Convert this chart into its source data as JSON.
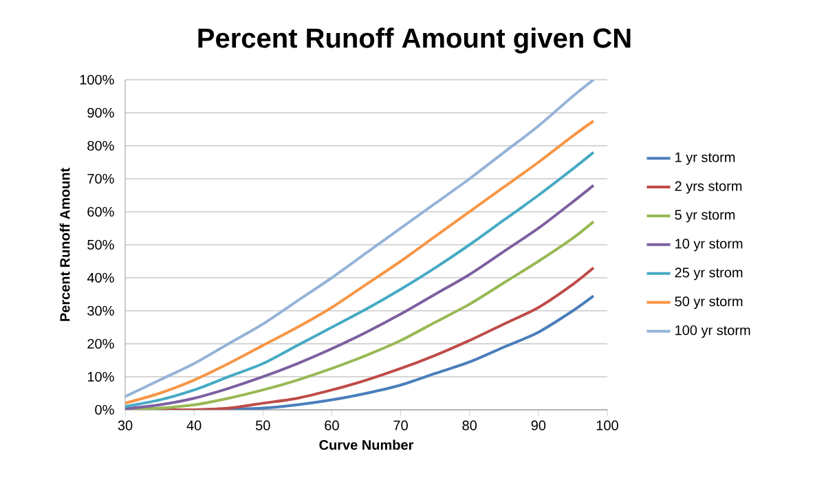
{
  "chart_data": {
    "type": "line",
    "title": "Percent Runoff Amount given CN",
    "xlabel": "Curve Number",
    "ylabel": "Percent Runoff Amount",
    "x": [
      30,
      35,
      40,
      45,
      50,
      55,
      60,
      65,
      70,
      75,
      80,
      85,
      90,
      95,
      98
    ],
    "series": [
      {
        "name": "1 yr storm",
        "color": "#4a7ebb",
        "values": [
          0,
          0,
          0,
          0.2,
          0.5,
          1.5,
          3,
          5,
          7.5,
          11,
          14.5,
          19,
          23.5,
          30,
          34.5
        ]
      },
      {
        "name": "2 yrs storm",
        "color": "#be4b48",
        "values": [
          0,
          0,
          0,
          0.5,
          2,
          3.5,
          6,
          9,
          12.5,
          16.5,
          21,
          26,
          31,
          38,
          43
        ]
      },
      {
        "name": "5 yr storm",
        "color": "#98b954",
        "values": [
          0,
          0.5,
          1.5,
          3.5,
          6,
          9,
          12.5,
          16.5,
          21,
          26.5,
          32,
          38.5,
          45,
          52,
          57
        ]
      },
      {
        "name": "10 yr storm",
        "color": "#7d60a0",
        "values": [
          0.3,
          1.5,
          3.5,
          6.5,
          10,
          14,
          18.5,
          23.5,
          29,
          35,
          41,
          48,
          55,
          63,
          68
        ]
      },
      {
        "name": "25 yr strom",
        "color": "#46aac5",
        "values": [
          1,
          3,
          6,
          10,
          14,
          19.5,
          25,
          30.5,
          36.5,
          43,
          50,
          57.5,
          65,
          73,
          78
        ]
      },
      {
        "name": "50 yr storm",
        "color": "#f79646",
        "values": [
          2,
          5,
          9,
          14,
          19.5,
          25,
          31,
          38,
          45,
          52.5,
          60,
          67.5,
          75,
          83,
          87.5
        ]
      },
      {
        "name": "100 yr storm",
        "color": "#95b3d7",
        "values": [
          4,
          9,
          14,
          20,
          26,
          33,
          40,
          47.5,
          55,
          62.5,
          70,
          78,
          86,
          95,
          100
        ]
      }
    ],
    "xlim": [
      30,
      100
    ],
    "xticks": [
      30,
      40,
      50,
      60,
      70,
      80,
      90,
      100
    ],
    "ylim": [
      0,
      100
    ],
    "yticks": [
      {
        "value": 0,
        "label": "0%"
      },
      {
        "value": 10,
        "label": "10%"
      },
      {
        "value": 20,
        "label": "20%"
      },
      {
        "value": 30,
        "label": "30%"
      },
      {
        "value": 40,
        "label": "40%"
      },
      {
        "value": 50,
        "label": "50%"
      },
      {
        "value": 60,
        "label": "60%"
      },
      {
        "value": 70,
        "label": "70%"
      },
      {
        "value": 80,
        "label": "80%"
      },
      {
        "value": 90,
        "label": "90%"
      },
      {
        "value": 100,
        "label": "100%"
      }
    ],
    "grid": "y",
    "legend": "right",
    "marker": "none",
    "line_style": "solid"
  }
}
